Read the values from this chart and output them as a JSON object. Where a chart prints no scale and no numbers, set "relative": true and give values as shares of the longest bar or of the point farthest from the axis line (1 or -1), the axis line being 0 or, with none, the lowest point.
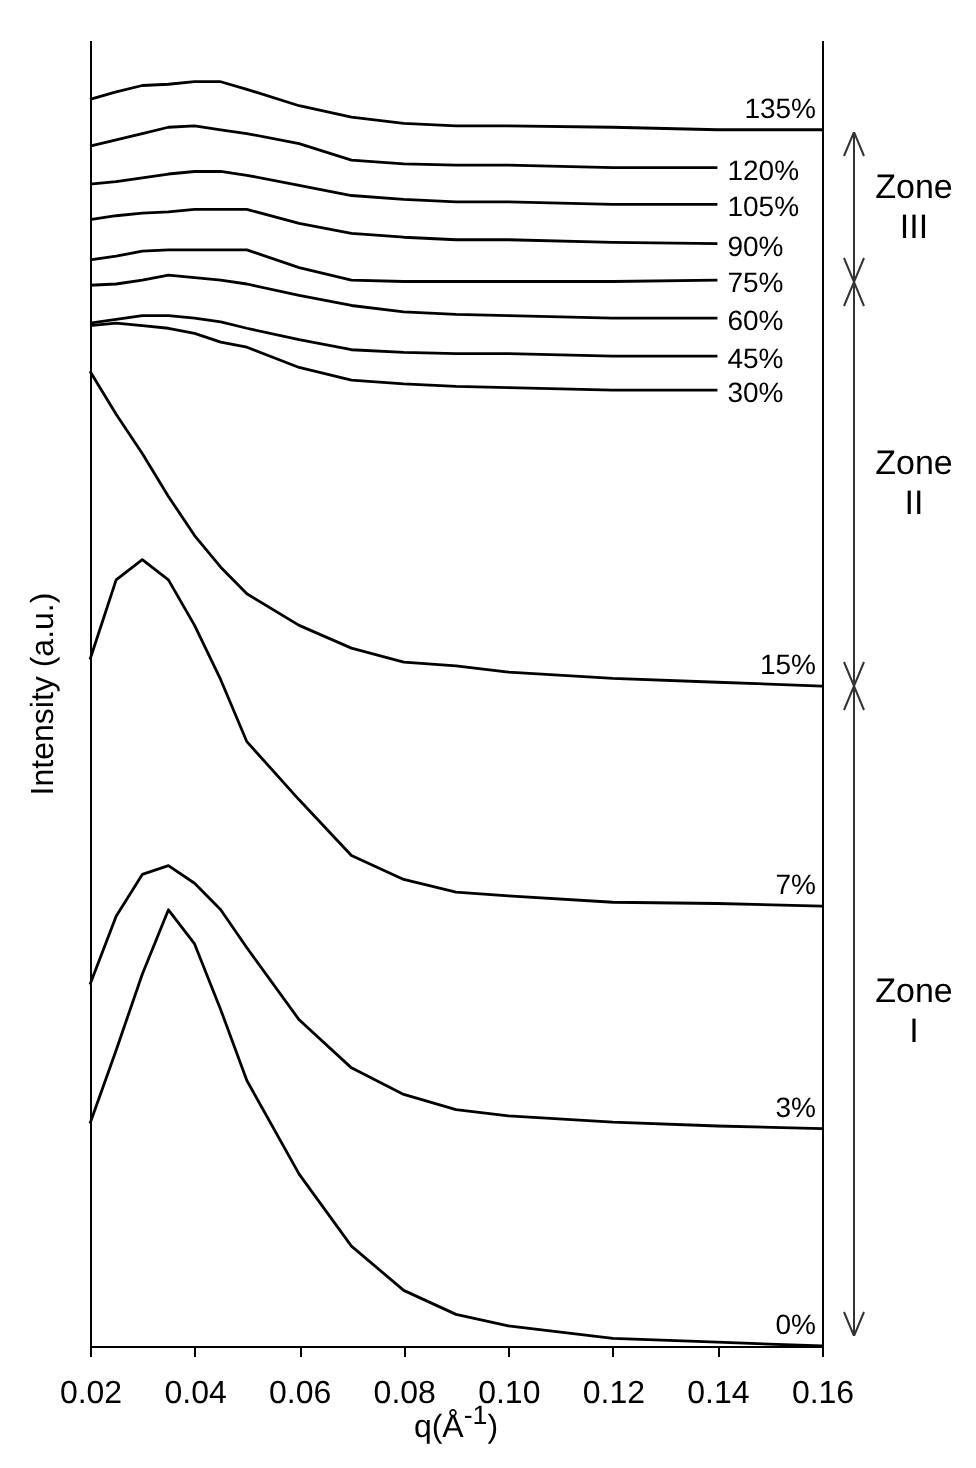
{
  "chart_data": {
    "type": "line",
    "relative": true,
    "xlabel": "q(Å$^{-1}$)",
    "ylabel": "Intensity (a.u.)",
    "legend": false,
    "grid": false,
    "xlim": [
      0.02,
      0.16
    ],
    "xticks": [
      0.02,
      0.04,
      0.06,
      0.08,
      {
        "value": 0.1,
        "label": "0.10"
      },
      0.12,
      0.14,
      0.16
    ],
    "x": [
      0.02,
      0.025,
      0.03,
      0.035,
      0.04,
      0.045,
      0.05,
      0.06,
      0.07,
      0.08,
      0.09,
      0.1,
      0.12,
      0.14,
      0.16
    ],
    "annotations": [
      "Zone III",
      "Zone II",
      "Zone I"
    ],
    "series": [
      {
        "name": "135%",
        "color": "#000000",
        "values": [
          0.986,
          0.992,
          0.997,
          0.998,
          1,
          1,
          0.994,
          0.981,
          0.972,
          0.967,
          0.965,
          0.965,
          0.964,
          0.962,
          0.962
        ]
      },
      {
        "name": "120%",
        "color": "#000000",
        "x": [
          0.02,
          0.025,
          0.03,
          0.035,
          0.04,
          0.045,
          0.05,
          0.06,
          0.07,
          0.08,
          0.09,
          0.1,
          0.12,
          0.14
        ],
        "values": [
          0.949,
          0.954,
          0.959,
          0.964,
          0.965,
          0.962,
          0.959,
          0.951,
          0.938,
          0.935,
          0.934,
          0.934,
          0.932,
          0.932
        ]
      },
      {
        "name": "105%",
        "color": "#000000",
        "x": [
          0.02,
          0.025,
          0.03,
          0.035,
          0.04,
          0.045,
          0.05,
          0.06,
          0.07,
          0.08,
          0.09,
          0.1,
          0.12,
          0.14
        ],
        "values": [
          0.919,
          0.921,
          0.924,
          0.927,
          0.929,
          0.929,
          0.926,
          0.918,
          0.91,
          0.907,
          0.905,
          0.905,
          0.903,
          0.903
        ]
      },
      {
        "name": "90%",
        "color": "#000000",
        "x": [
          0.02,
          0.025,
          0.03,
          0.035,
          0.04,
          0.045,
          0.05,
          0.06,
          0.07,
          0.08,
          0.09,
          0.1,
          0.12,
          0.14
        ],
        "values": [
          0.891,
          0.894,
          0.896,
          0.897,
          0.899,
          0.899,
          0.899,
          0.888,
          0.88,
          0.877,
          0.875,
          0.875,
          0.873,
          0.872
        ]
      },
      {
        "name": "75%",
        "color": "#000000",
        "x": [
          0.02,
          0.025,
          0.03,
          0.035,
          0.04,
          0.045,
          0.05,
          0.06,
          0.07,
          0.08,
          0.09,
          0.1,
          0.12,
          0.14
        ],
        "values": [
          0.859,
          0.862,
          0.866,
          0.867,
          0.867,
          0.867,
          0.867,
          0.853,
          0.843,
          0.842,
          0.842,
          0.842,
          0.842,
          0.843
        ]
      },
      {
        "name": "60%",
        "color": "#000000",
        "x": [
          0.02,
          0.025,
          0.03,
          0.035,
          0.04,
          0.045,
          0.05,
          0.06,
          0.07,
          0.08,
          0.09,
          0.1,
          0.12,
          0.14
        ],
        "values": [
          0.839,
          0.84,
          0.843,
          0.847,
          0.845,
          0.843,
          0.84,
          0.831,
          0.823,
          0.818,
          0.816,
          0.815,
          0.813,
          0.813
        ]
      },
      {
        "name": "45%",
        "color": "#000000",
        "x": [
          0.02,
          0.025,
          0.03,
          0.035,
          0.04,
          0.045,
          0.05,
          0.06,
          0.07,
          0.08,
          0.09,
          0.1,
          0.12,
          0.14
        ],
        "values": [
          0.809,
          0.812,
          0.815,
          0.815,
          0.813,
          0.81,
          0.805,
          0.796,
          0.788,
          0.786,
          0.785,
          0.785,
          0.783,
          0.783
        ]
      },
      {
        "name": "30%",
        "color": "#000000",
        "x": [
          0.02,
          0.025,
          0.03,
          0.035,
          0.04,
          0.045,
          0.05,
          0.06,
          0.07,
          0.08,
          0.09,
          0.1,
          0.12,
          0.14
        ],
        "values": [
          0.807,
          0.809,
          0.807,
          0.805,
          0.801,
          0.794,
          0.79,
          0.774,
          0.764,
          0.761,
          0.759,
          0.758,
          0.756,
          0.756
        ]
      },
      {
        "name": "15%",
        "color": "#000000",
        "values": [
          0.771,
          0.737,
          0.706,
          0.672,
          0.641,
          0.616,
          0.595,
          0.57,
          0.552,
          0.541,
          0.538,
          0.533,
          0.528,
          0.525,
          0.522
        ]
      },
      {
        "name": "7%",
        "color": "#000000",
        "values": [
          0.543,
          0.606,
          0.622,
          0.606,
          0.57,
          0.527,
          0.478,
          0.432,
          0.388,
          0.369,
          0.359,
          0.356,
          0.351,
          0.35,
          0.348
        ]
      },
      {
        "name": "3%",
        "color": "#000000",
        "values": [
          0.286,
          0.34,
          0.373,
          0.38,
          0.366,
          0.345,
          0.315,
          0.258,
          0.22,
          0.199,
          0.187,
          0.182,
          0.177,
          0.174,
          0.172
        ]
      },
      {
        "name": "0%",
        "color": "#000000",
        "values": [
          0.176,
          0.234,
          0.294,
          0.345,
          0.318,
          0.266,
          0.21,
          0.136,
          0.079,
          0.044,
          0.025,
          0.016,
          0.006,
          0.003,
          0
        ]
      }
    ]
  }
}
